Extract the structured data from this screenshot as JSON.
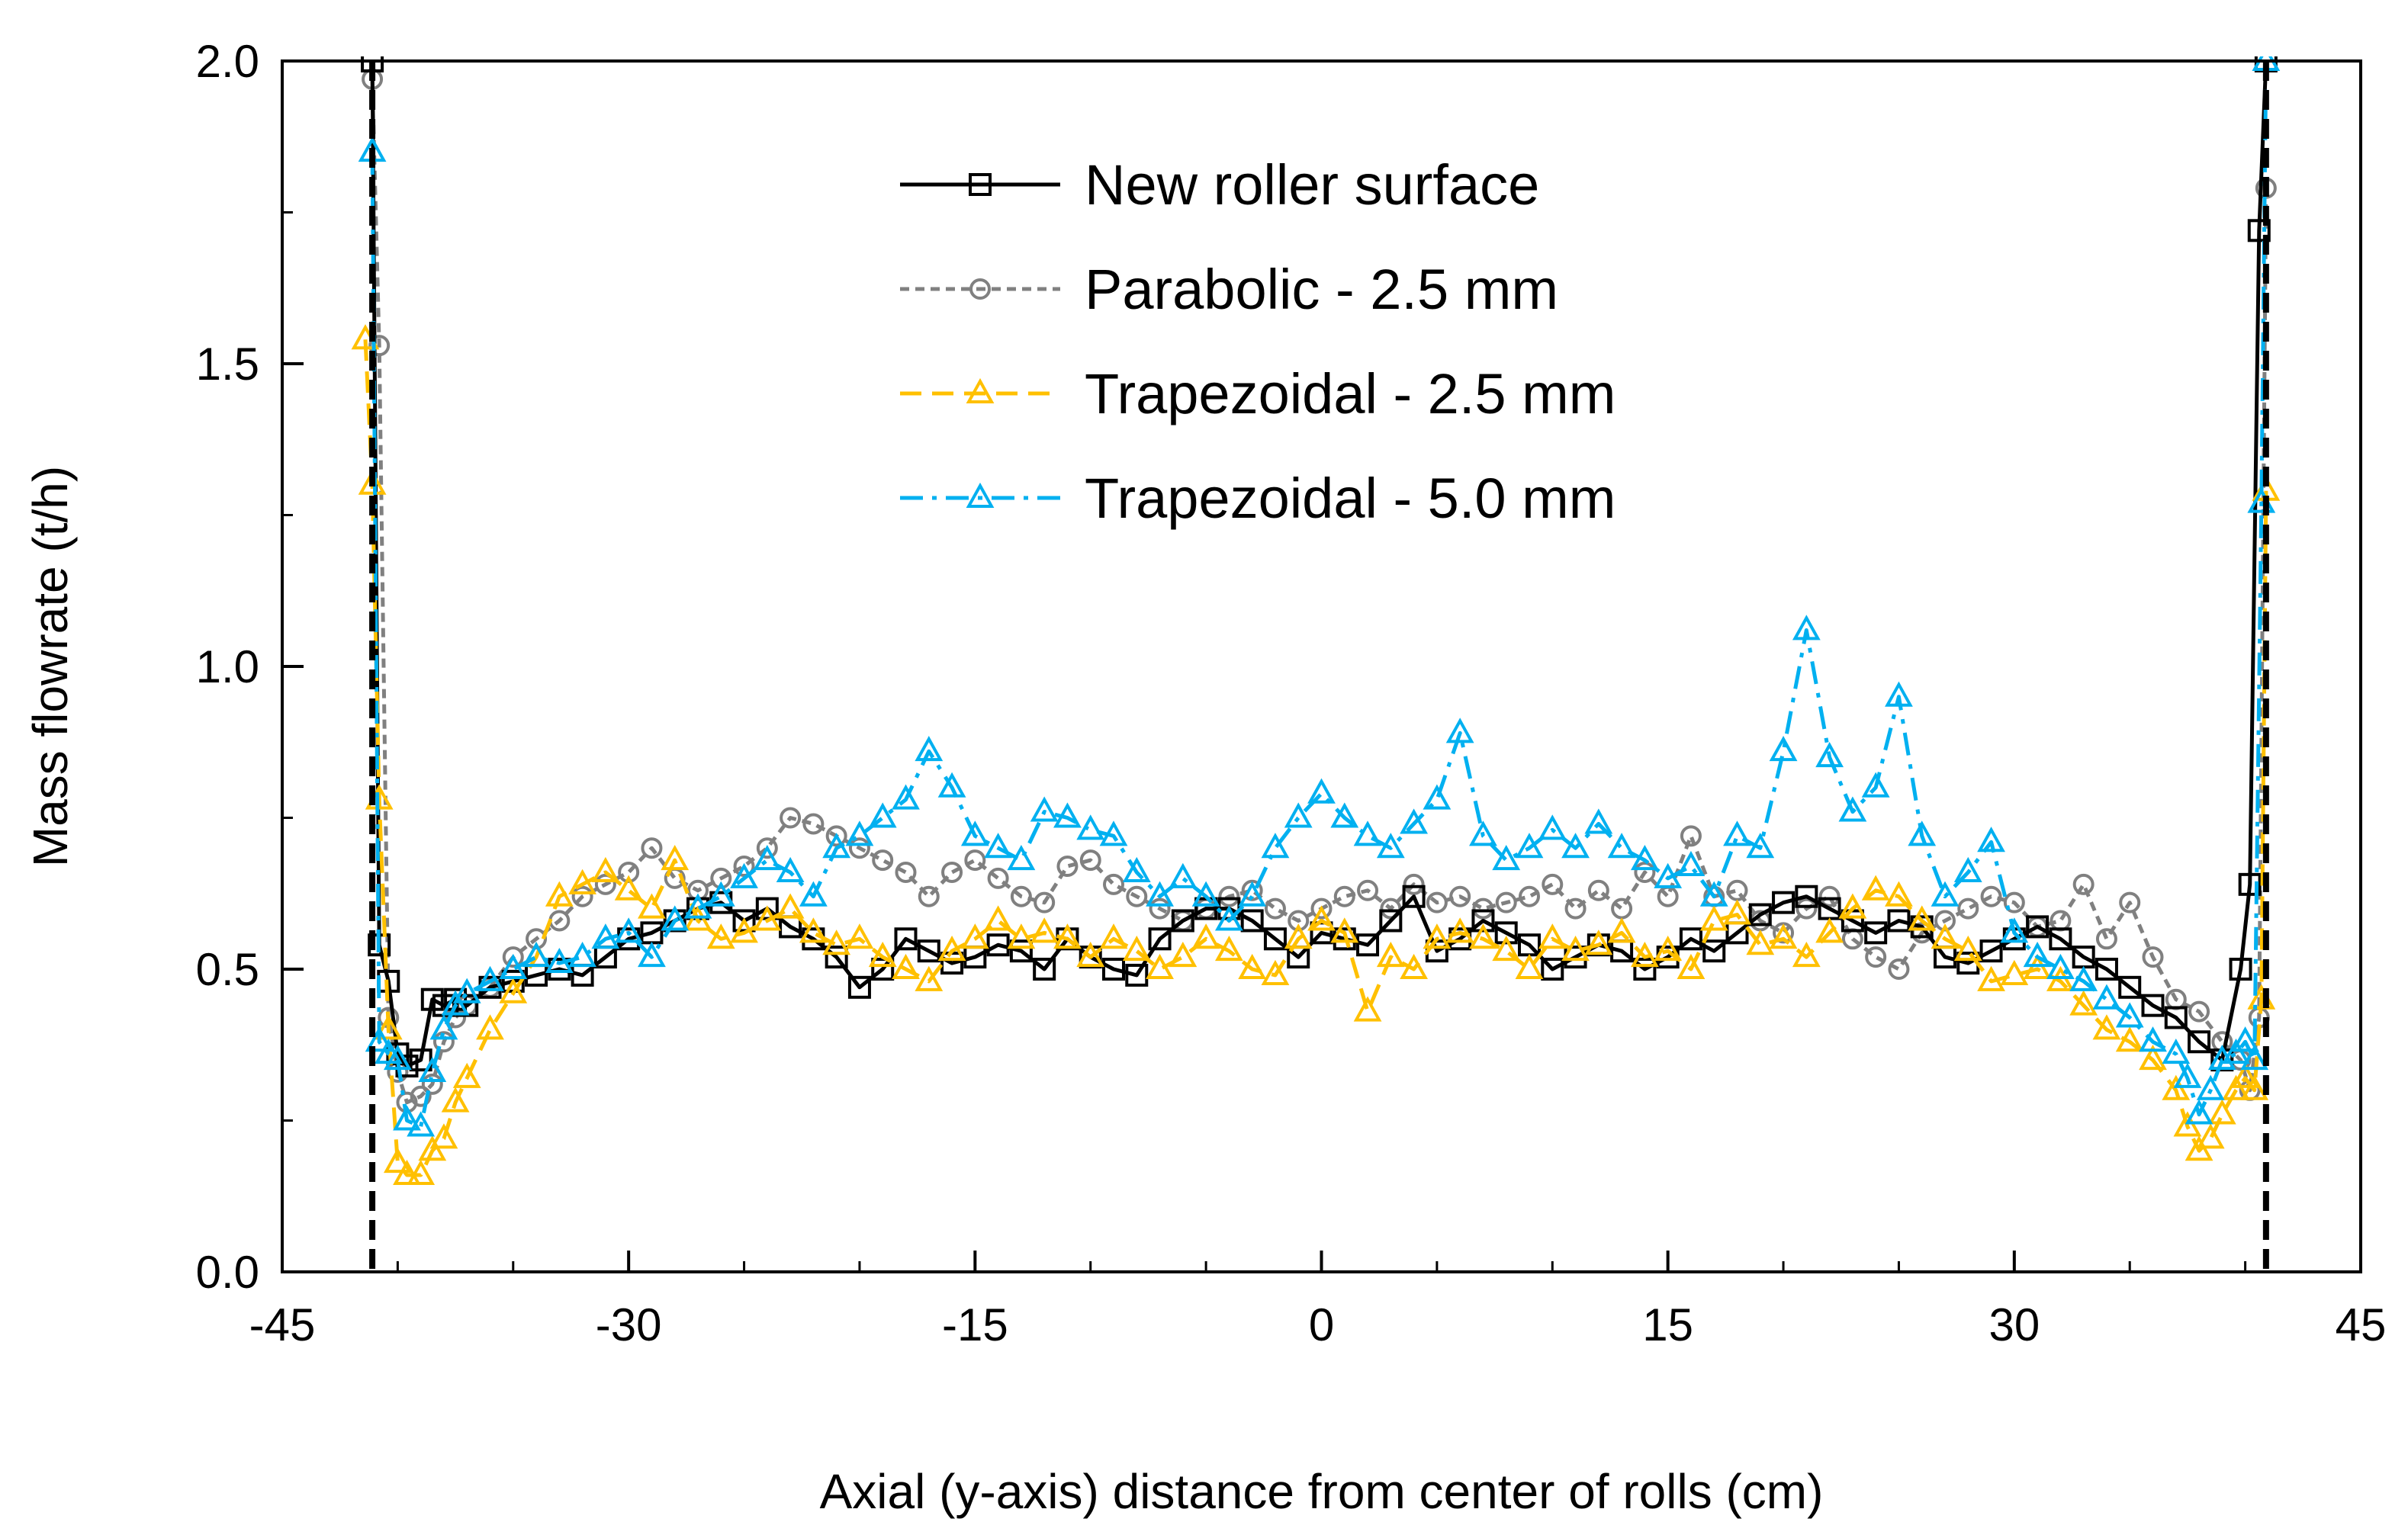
{
  "chart_data": {
    "type": "line",
    "title": "",
    "xlabel": "Axial (y-axis) distance from center of rolls (cm)",
    "ylabel": "Mass flowrate (t/h)",
    "xlim": [
      -45,
      45
    ],
    "ylim": [
      0,
      2
    ],
    "xticks": [
      -45,
      -30,
      -15,
      0,
      15,
      30,
      45
    ],
    "xtick_labels": [
      "-45",
      "-30",
      "-15",
      "0",
      "15",
      "30",
      "45"
    ],
    "xminor": [
      -40,
      -35,
      -25,
      -20,
      -10,
      -5,
      5,
      10,
      20,
      25,
      35,
      40
    ],
    "yticks": [
      0,
      0.5,
      1,
      1.5,
      2
    ],
    "ytick_labels": [
      "0.0",
      "0.5",
      "1.0",
      "1.5",
      "2.0"
    ],
    "yminor": [
      0.25,
      0.75,
      1.25,
      1.75
    ],
    "grid": false,
    "legend_position": "top-center",
    "boundaries": [
      -41.1,
      40.9
    ],
    "series": [
      {
        "name": "New roller surface",
        "color": "#000000",
        "marker": "square",
        "dash": "solid",
        "x": [
          -41.1,
          -40.8,
          -40.4,
          -40.0,
          -39.6,
          -39.0,
          -38.5,
          -38.0,
          -37.5,
          -37.0,
          -36.0,
          -35.0,
          -34.0,
          -33.0,
          -32.0,
          -31.0,
          -30.0,
          -29.0,
          -28.0,
          -27.0,
          -26.0,
          -25.0,
          -24.0,
          -23.0,
          -22.0,
          -21.0,
          -20.0,
          -19.0,
          -18.0,
          -17.0,
          -16.0,
          -15.0,
          -14.0,
          -13.0,
          -12.0,
          -11.0,
          -10.0,
          -9.0,
          -8.0,
          -7.0,
          -6.0,
          -5.0,
          -4.0,
          -3.0,
          -2.0,
          -1.0,
          0.0,
          1.0,
          2.0,
          3.0,
          4.0,
          5.0,
          6.0,
          7.0,
          8.0,
          9.0,
          10.0,
          11.0,
          12.0,
          13.0,
          14.0,
          15.0,
          16.0,
          17.0,
          18.0,
          19.0,
          20.0,
          21.0,
          22.0,
          23.0,
          24.0,
          25.0,
          26.0,
          27.0,
          28.0,
          29.0,
          30.0,
          31.0,
          32.0,
          33.0,
          34.0,
          35.0,
          36.0,
          37.0,
          38.0,
          39.0,
          39.8,
          40.2,
          40.6,
          40.9
        ],
        "y": [
          2.0,
          0.54,
          0.48,
          0.36,
          0.34,
          0.35,
          0.45,
          0.44,
          0.45,
          0.44,
          0.47,
          0.48,
          0.49,
          0.5,
          0.49,
          0.52,
          0.55,
          0.56,
          0.58,
          0.6,
          0.61,
          0.58,
          0.6,
          0.57,
          0.55,
          0.52,
          0.47,
          0.5,
          0.55,
          0.53,
          0.51,
          0.52,
          0.54,
          0.53,
          0.5,
          0.55,
          0.52,
          0.5,
          0.49,
          0.55,
          0.58,
          0.6,
          0.6,
          0.58,
          0.55,
          0.52,
          0.56,
          0.55,
          0.54,
          0.58,
          0.62,
          0.53,
          0.55,
          0.58,
          0.56,
          0.54,
          0.5,
          0.52,
          0.54,
          0.53,
          0.5,
          0.52,
          0.55,
          0.53,
          0.56,
          0.59,
          0.61,
          0.62,
          0.6,
          0.58,
          0.56,
          0.58,
          0.57,
          0.52,
          0.51,
          0.53,
          0.55,
          0.57,
          0.55,
          0.52,
          0.5,
          0.47,
          0.44,
          0.42,
          0.38,
          0.35,
          0.5,
          0.64,
          1.72,
          2.0
        ]
      },
      {
        "name": "Parabolic - 2.5 mm",
        "color": "#808080",
        "marker": "circle",
        "dash": "dashed",
        "x": [
          -41.1,
          -40.8,
          -40.4,
          -40.0,
          -39.6,
          -39.0,
          -38.5,
          -38.0,
          -37.5,
          -37.0,
          -36.0,
          -35.0,
          -34.0,
          -33.0,
          -32.0,
          -31.0,
          -30.0,
          -29.0,
          -28.0,
          -27.0,
          -26.0,
          -25.0,
          -24.0,
          -23.0,
          -22.0,
          -21.0,
          -20.0,
          -19.0,
          -18.0,
          -17.0,
          -16.0,
          -15.0,
          -14.0,
          -13.0,
          -12.0,
          -11.0,
          -10.0,
          -9.0,
          -8.0,
          -7.0,
          -6.0,
          -5.0,
          -4.0,
          -3.0,
          -2.0,
          -1.0,
          0.0,
          1.0,
          2.0,
          3.0,
          4.0,
          5.0,
          6.0,
          7.0,
          8.0,
          9.0,
          10.0,
          11.0,
          12.0,
          13.0,
          14.0,
          15.0,
          16.0,
          17.0,
          18.0,
          19.0,
          20.0,
          21.0,
          22.0,
          23.0,
          24.0,
          25.0,
          26.0,
          27.0,
          28.0,
          29.0,
          30.0,
          31.0,
          32.0,
          33.0,
          34.0,
          35.0,
          36.0,
          37.0,
          38.0,
          39.0,
          39.8,
          40.2,
          40.6,
          40.9
        ],
        "y": [
          1.97,
          1.53,
          0.42,
          0.33,
          0.28,
          0.29,
          0.31,
          0.38,
          0.42,
          0.44,
          0.47,
          0.52,
          0.55,
          0.58,
          0.62,
          0.64,
          0.66,
          0.7,
          0.65,
          0.63,
          0.65,
          0.67,
          0.7,
          0.75,
          0.74,
          0.72,
          0.7,
          0.68,
          0.66,
          0.62,
          0.66,
          0.68,
          0.65,
          0.62,
          0.61,
          0.67,
          0.68,
          0.64,
          0.62,
          0.6,
          0.58,
          0.6,
          0.62,
          0.63,
          0.6,
          0.58,
          0.6,
          0.62,
          0.63,
          0.6,
          0.64,
          0.61,
          0.62,
          0.6,
          0.61,
          0.62,
          0.64,
          0.6,
          0.63,
          0.6,
          0.66,
          0.62,
          0.72,
          0.62,
          0.63,
          0.58,
          0.56,
          0.6,
          0.62,
          0.55,
          0.52,
          0.5,
          0.56,
          0.58,
          0.6,
          0.62,
          0.61,
          0.57,
          0.58,
          0.64,
          0.55,
          0.61,
          0.52,
          0.45,
          0.43,
          0.38,
          0.35,
          0.3,
          0.42,
          1.79
        ]
      },
      {
        "name": "Trapezoidal - 2.5 mm",
        "color": "#FFC000",
        "marker": "triangle",
        "dash": "longdash",
        "x": [
          -41.4,
          -41.1,
          -40.8,
          -40.4,
          -40.0,
          -39.6,
          -39.0,
          -38.5,
          -38.0,
          -37.5,
          -37.0,
          -36.0,
          -35.0,
          -34.0,
          -33.0,
          -32.0,
          -31.0,
          -30.0,
          -29.0,
          -28.0,
          -27.0,
          -26.0,
          -25.0,
          -24.0,
          -23.0,
          -22.0,
          -21.0,
          -20.0,
          -19.0,
          -18.0,
          -17.0,
          -16.0,
          -15.0,
          -14.0,
          -13.0,
          -12.0,
          -11.0,
          -10.0,
          -9.0,
          -8.0,
          -7.0,
          -6.0,
          -5.0,
          -4.0,
          -3.0,
          -2.0,
          -1.0,
          0.0,
          1.0,
          2.0,
          3.0,
          4.0,
          5.0,
          6.0,
          7.0,
          8.0,
          9.0,
          10.0,
          11.0,
          12.0,
          13.0,
          14.0,
          15.0,
          16.0,
          17.0,
          18.0,
          19.0,
          20.0,
          21.0,
          22.0,
          23.0,
          24.0,
          25.0,
          26.0,
          27.0,
          28.0,
          29.0,
          30.0,
          31.0,
          32.0,
          33.0,
          34.0,
          35.0,
          36.0,
          37.0,
          37.5,
          38.0,
          38.5,
          39.0,
          39.6,
          40.0,
          40.4,
          40.7,
          40.9
        ],
        "y": [
          1.54,
          1.3,
          0.78,
          0.4,
          0.18,
          0.16,
          0.16,
          0.2,
          0.22,
          0.28,
          0.32,
          0.4,
          0.46,
          0.52,
          0.62,
          0.64,
          0.66,
          0.63,
          0.6,
          0.68,
          0.58,
          0.55,
          0.56,
          0.58,
          0.6,
          0.56,
          0.54,
          0.55,
          0.52,
          0.5,
          0.48,
          0.53,
          0.55,
          0.58,
          0.55,
          0.56,
          0.55,
          0.52,
          0.55,
          0.53,
          0.5,
          0.52,
          0.55,
          0.53,
          0.5,
          0.49,
          0.55,
          0.58,
          0.56,
          0.43,
          0.52,
          0.5,
          0.55,
          0.56,
          0.55,
          0.53,
          0.5,
          0.55,
          0.53,
          0.54,
          0.56,
          0.52,
          0.53,
          0.5,
          0.58,
          0.59,
          0.54,
          0.55,
          0.52,
          0.56,
          0.6,
          0.63,
          0.62,
          0.58,
          0.55,
          0.53,
          0.48,
          0.49,
          0.5,
          0.48,
          0.44,
          0.4,
          0.38,
          0.35,
          0.3,
          0.24,
          0.2,
          0.22,
          0.26,
          0.3,
          0.32,
          0.3,
          0.45,
          1.29
        ]
      },
      {
        "name": "Trapezoidal - 5.0 mm",
        "color": "#00B0F0",
        "marker": "triangle",
        "dash": "dashdot",
        "x": [
          -41.1,
          -40.8,
          -40.4,
          -40.0,
          -39.6,
          -39.0,
          -38.5,
          -38.0,
          -37.5,
          -37.0,
          -36.0,
          -35.0,
          -34.0,
          -33.0,
          -32.0,
          -31.0,
          -30.0,
          -29.0,
          -28.0,
          -27.0,
          -26.0,
          -25.0,
          -24.0,
          -23.0,
          -22.0,
          -21.0,
          -20.0,
          -19.0,
          -18.0,
          -17.0,
          -16.0,
          -15.0,
          -14.0,
          -13.0,
          -12.0,
          -11.0,
          -10.0,
          -9.0,
          -8.0,
          -7.0,
          -6.0,
          -5.0,
          -4.0,
          -3.0,
          -2.0,
          -1.0,
          0.0,
          1.0,
          2.0,
          3.0,
          4.0,
          5.0,
          6.0,
          7.0,
          8.0,
          9.0,
          10.0,
          11.0,
          12.0,
          13.0,
          14.0,
          15.0,
          16.0,
          17.0,
          18.0,
          19.0,
          20.0,
          21.0,
          22.0,
          23.0,
          24.0,
          25.0,
          26.0,
          27.0,
          28.0,
          29.0,
          30.0,
          31.0,
          32.0,
          33.0,
          34.0,
          35.0,
          36.0,
          37.0,
          37.5,
          38.0,
          38.5,
          39.0,
          39.6,
          40.0,
          40.4,
          40.7,
          40.9
        ],
        "y": [
          1.85,
          0.38,
          0.36,
          0.35,
          0.25,
          0.24,
          0.33,
          0.4,
          0.44,
          0.46,
          0.48,
          0.5,
          0.52,
          0.51,
          0.52,
          0.55,
          0.56,
          0.52,
          0.58,
          0.6,
          0.62,
          0.65,
          0.68,
          0.66,
          0.62,
          0.7,
          0.72,
          0.75,
          0.78,
          0.86,
          0.8,
          0.72,
          0.7,
          0.68,
          0.76,
          0.75,
          0.73,
          0.72,
          0.66,
          0.62,
          0.65,
          0.62,
          0.58,
          0.62,
          0.7,
          0.75,
          0.79,
          0.75,
          0.72,
          0.7,
          0.74,
          0.78,
          0.89,
          0.72,
          0.68,
          0.7,
          0.73,
          0.7,
          0.74,
          0.7,
          0.68,
          0.65,
          0.67,
          0.62,
          0.72,
          0.7,
          0.86,
          1.06,
          0.85,
          0.76,
          0.8,
          0.95,
          0.72,
          0.62,
          0.66,
          0.71,
          0.56,
          0.52,
          0.5,
          0.48,
          0.45,
          0.42,
          0.38,
          0.36,
          0.32,
          0.26,
          0.3,
          0.35,
          0.36,
          0.38,
          0.35,
          1.27,
          2.0
        ]
      }
    ]
  }
}
